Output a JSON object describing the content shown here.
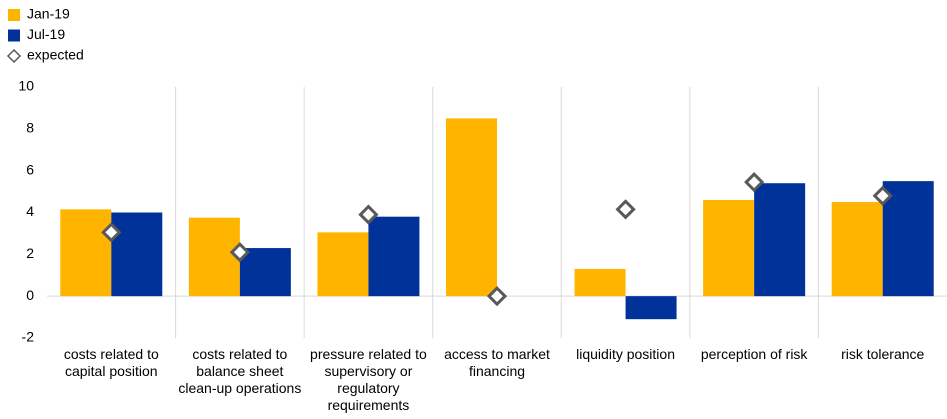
{
  "chart_data": {
    "type": "bar",
    "categories": [
      "costs related to capital position",
      "costs related to balance sheet clean-up operations",
      "pressure related to supervisory or regulatory requirements",
      "access to market financing",
      "liquidity position",
      "perception of risk",
      "risk tolerance"
    ],
    "series": [
      {
        "name": "Jan-19",
        "color": "#ffb400",
        "marker": "bar",
        "values": [
          4.15,
          3.75,
          3.05,
          8.5,
          1.3,
          4.6,
          4.5
        ]
      },
      {
        "name": "Jul-19",
        "color": "#003299",
        "marker": "bar",
        "values": [
          4.0,
          2.3,
          3.8,
          0,
          -1.1,
          5.4,
          5.5
        ]
      },
      {
        "name": "expected",
        "color": "#595959",
        "marker": "diamond",
        "values": [
          3.05,
          2.1,
          3.9,
          0,
          4.15,
          5.45,
          4.8
        ]
      }
    ],
    "ylim": [
      -2,
      10
    ],
    "yticks": [
      -2,
      0,
      2,
      4,
      6,
      8,
      10
    ],
    "grid": false,
    "legend": "top-left"
  }
}
